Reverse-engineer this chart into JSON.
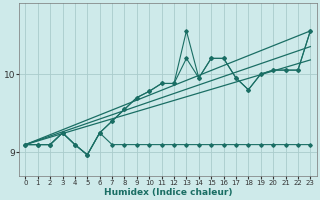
{
  "xlabel": "Humidex (Indice chaleur)",
  "bg_color": "#ceeaea",
  "grid_color": "#aacccc",
  "line_color": "#1a6e64",
  "xlim": [
    -0.5,
    23.5
  ],
  "ylim": [
    8.7,
    10.9
  ],
  "yticks": [
    9,
    10
  ],
  "xticks": [
    0,
    1,
    2,
    3,
    4,
    5,
    6,
    7,
    8,
    9,
    10,
    11,
    12,
    13,
    14,
    15,
    16,
    17,
    18,
    19,
    20,
    21,
    22,
    23
  ],
  "series_jagged": [
    9.1,
    9.1,
    9.1,
    9.25,
    9.1,
    8.97,
    9.25,
    9.1,
    9.1,
    9.1,
    9.1,
    9.1,
    9.1,
    9.1,
    9.1,
    9.1,
    9.1,
    9.1,
    9.1,
    9.1,
    9.1,
    9.1,
    9.1,
    9.1
  ],
  "series_main": [
    9.1,
    9.1,
    9.1,
    9.25,
    9.1,
    8.97,
    9.25,
    9.4,
    9.55,
    9.7,
    9.78,
    9.88,
    9.88,
    10.2,
    9.95,
    10.2,
    10.2,
    9.95,
    9.8,
    10.0,
    10.05,
    10.05,
    10.05,
    10.55
  ],
  "series_peak": [
    9.1,
    9.1,
    9.1,
    9.25,
    9.1,
    8.97,
    9.25,
    9.4,
    9.55,
    9.7,
    9.78,
    9.88,
    9.88,
    10.55,
    9.95,
    10.2,
    10.2,
    9.95,
    9.8,
    10.0,
    10.05,
    10.05,
    10.05,
    10.55
  ],
  "trend1_x": [
    0,
    23
  ],
  "trend1_y": [
    9.1,
    10.55
  ],
  "trend2_x": [
    0,
    23
  ],
  "trend2_y": [
    9.1,
    10.35
  ],
  "trend3_x": [
    0,
    23
  ],
  "trend3_y": [
    9.1,
    10.18
  ]
}
